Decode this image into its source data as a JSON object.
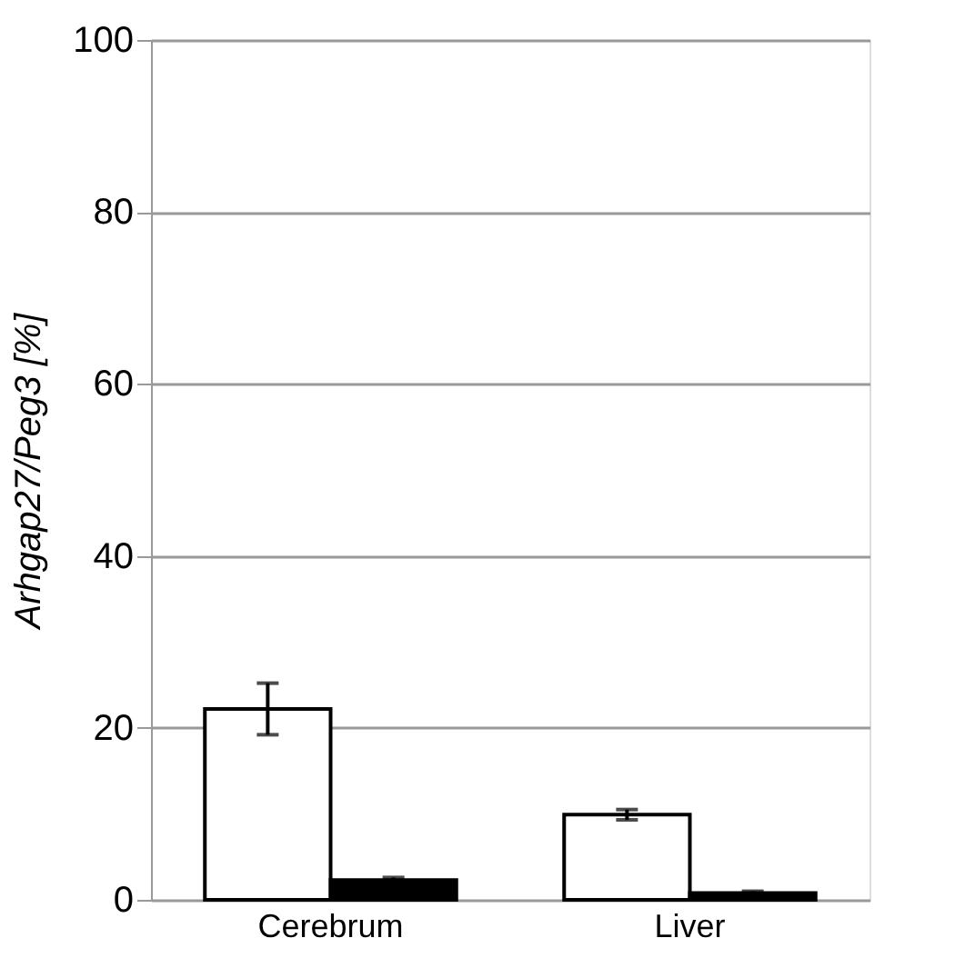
{
  "chart_data": {
    "type": "bar",
    "ylabel": "Arhgap27/Peg3 [%]",
    "categories": [
      "Cerebrum",
      "Liver"
    ],
    "series": [
      {
        "color": "#ffffff",
        "values": [
          22.2,
          9.9
        ],
        "errors": [
          3,
          0.6
        ]
      },
      {
        "color": "#000000",
        "values": [
          2.3,
          0.8
        ],
        "errors": [
          0.3,
          0.2
        ]
      }
    ],
    "ylim": [
      0,
      100
    ],
    "yticks": [
      0,
      20,
      40,
      60,
      80,
      100
    ],
    "grid": "y",
    "legend": false
  }
}
